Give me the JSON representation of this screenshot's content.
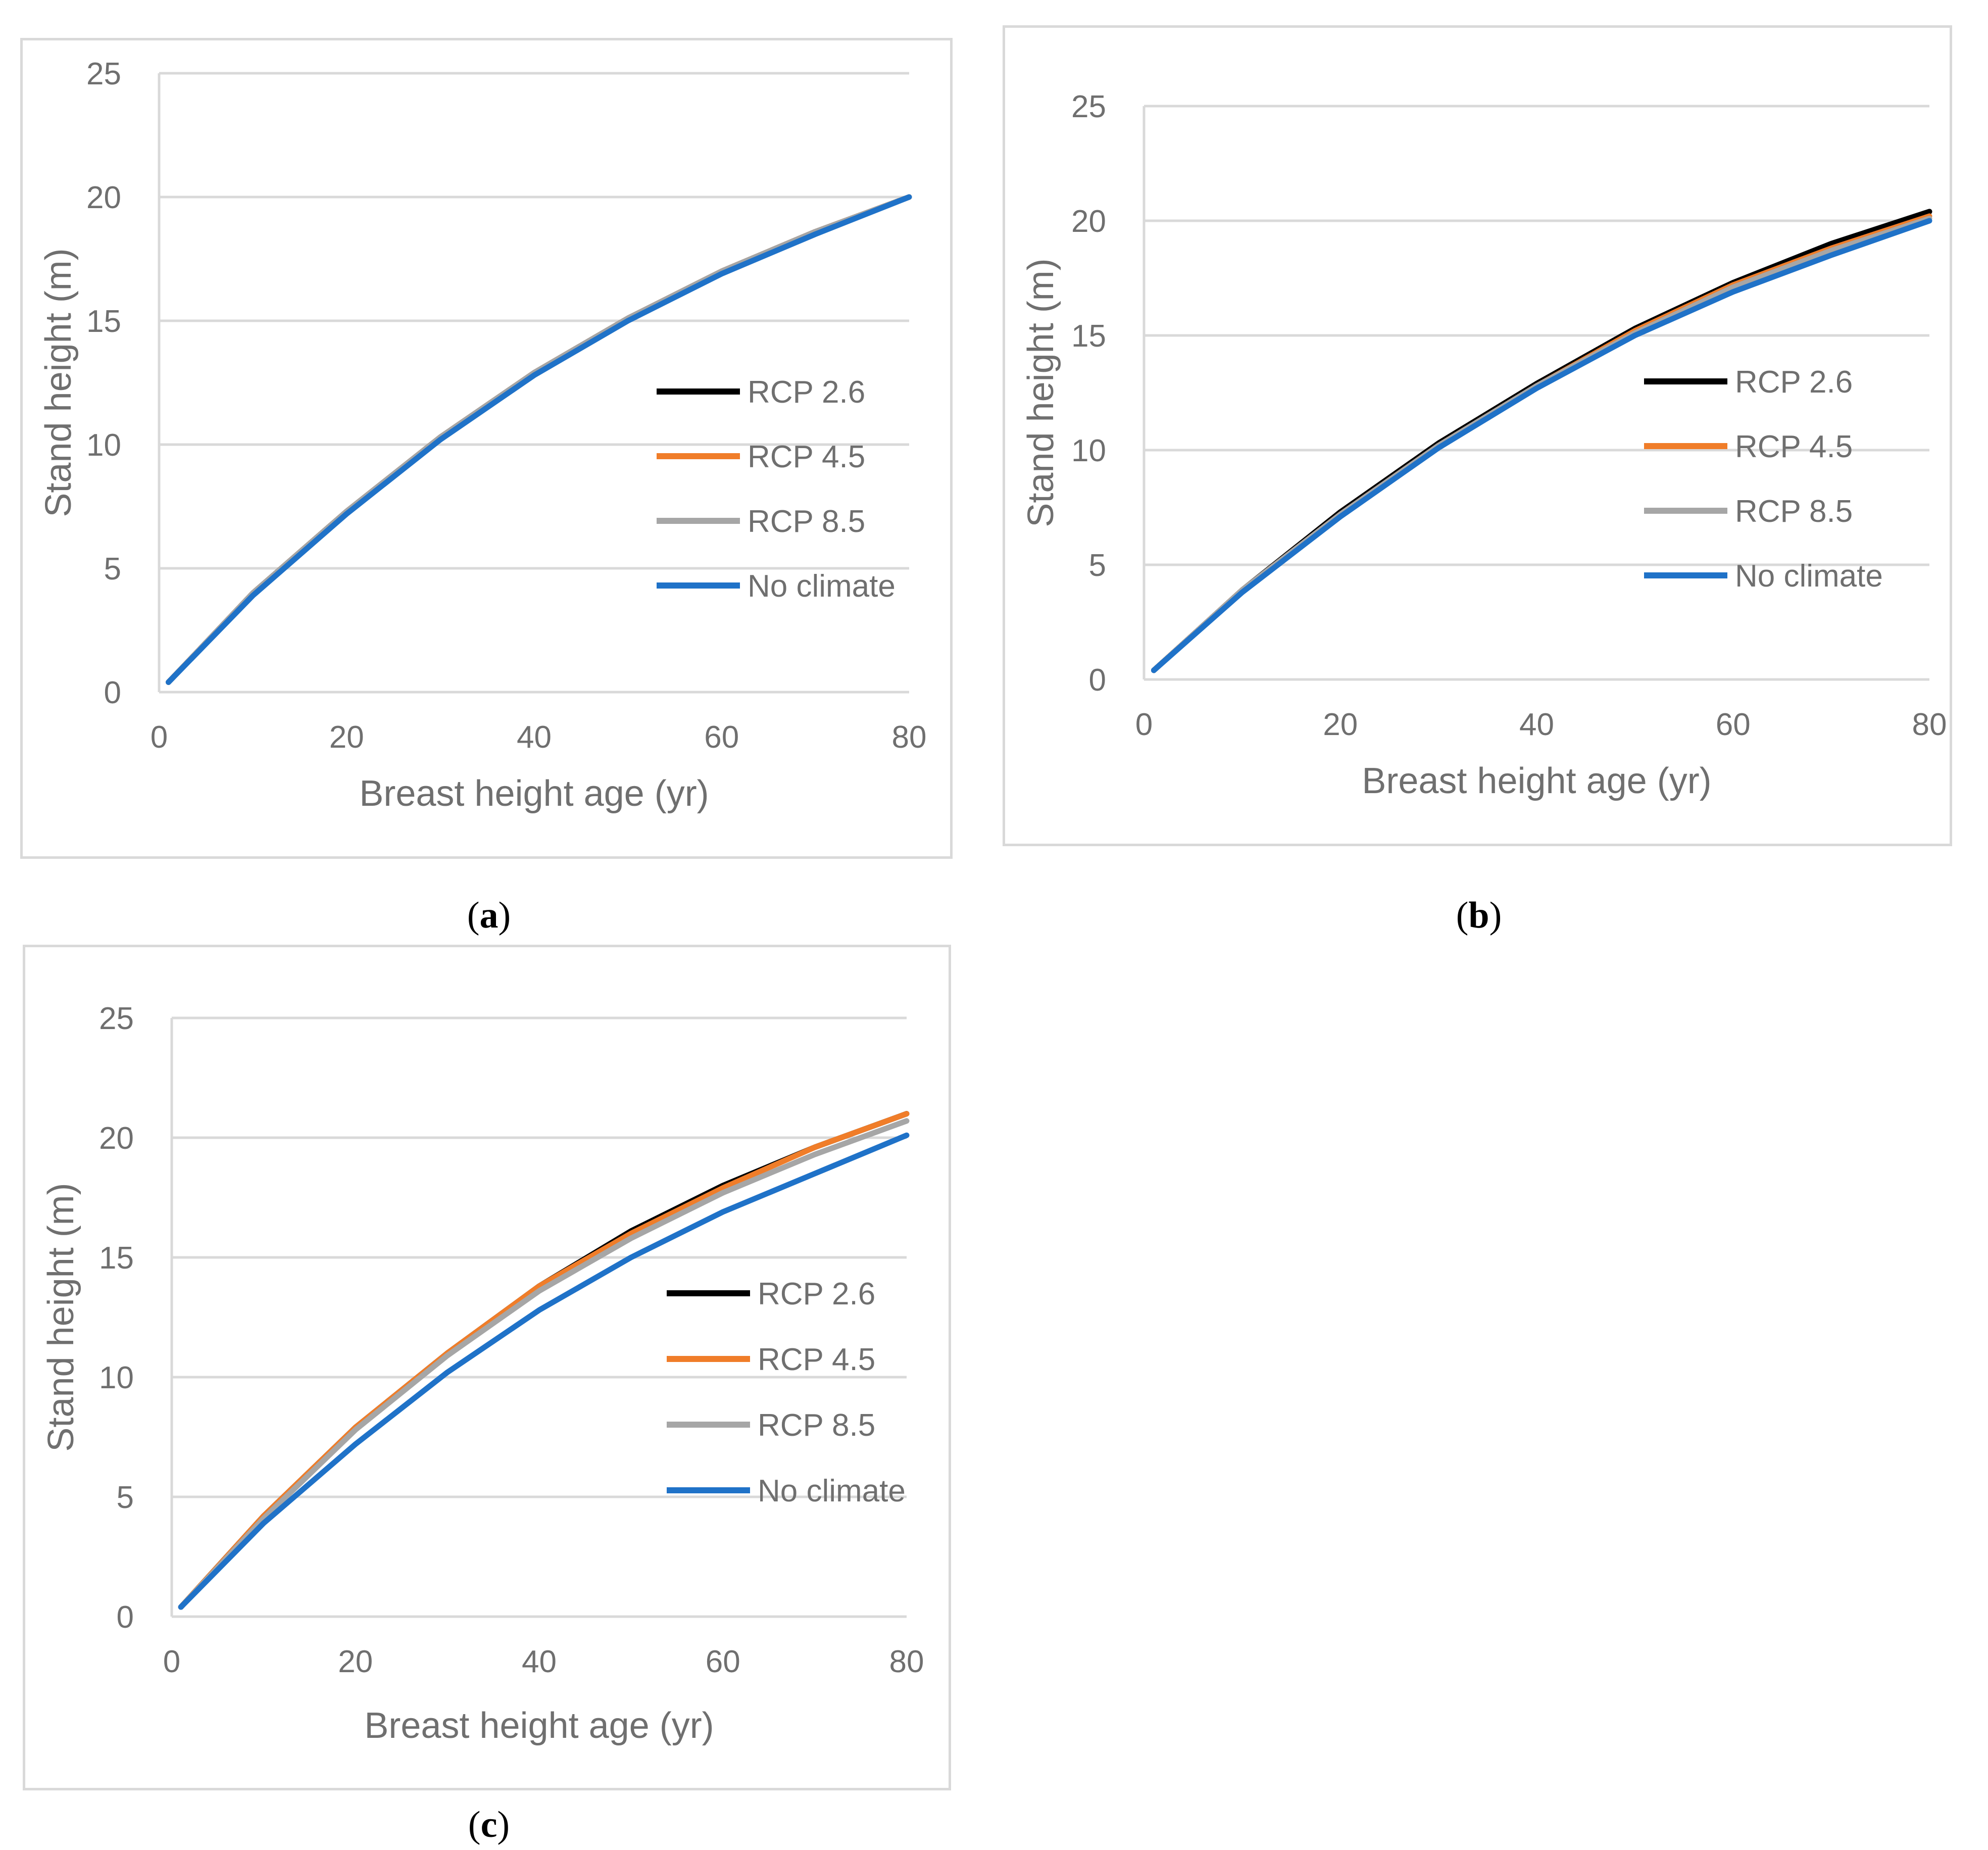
{
  "legend_colors": {
    "RCP 2.6": "#000000",
    "RCP 4.5": "#f07d29",
    "RCP 8.5": "#a6a6a6",
    "No climate": "#1f72c8"
  },
  "chart_data": [
    {
      "panel": "a",
      "caption_letter": "a",
      "type": "line",
      "title": "",
      "xlabel": "Breast height age (yr)",
      "ylabel": "Stand height (m)",
      "xlim": [
        0,
        80
      ],
      "ylim": [
        0,
        25
      ],
      "xticks": [
        "0",
        "20",
        "40",
        "60",
        "80"
      ],
      "yticks": [
        "0",
        "5",
        "10",
        "15",
        "20",
        "25"
      ],
      "grid": true,
      "legend_position": "right",
      "x": [
        1,
        10,
        20,
        30,
        40,
        50,
        60,
        70,
        80
      ],
      "series": [
        {
          "name": "RCP 2.6",
          "values": [
            0.4,
            4.0,
            7.3,
            10.3,
            12.9,
            15.1,
            17.0,
            18.6,
            20.0
          ]
        },
        {
          "name": "RCP 4.5",
          "values": [
            0.4,
            4.0,
            7.3,
            10.3,
            12.9,
            15.1,
            17.0,
            18.6,
            20.0
          ]
        },
        {
          "name": "RCP 8.5",
          "values": [
            0.4,
            4.0,
            7.3,
            10.3,
            12.9,
            15.1,
            17.0,
            18.6,
            20.0
          ]
        },
        {
          "name": "No climate",
          "values": [
            0.4,
            3.9,
            7.2,
            10.2,
            12.8,
            15.0,
            16.9,
            18.5,
            20.0
          ]
        }
      ]
    },
    {
      "panel": "b",
      "caption_letter": "b",
      "type": "line",
      "title": "",
      "xlabel": "Breast height age (yr)",
      "ylabel": "Stand height (m)",
      "xlim": [
        0,
        80
      ],
      "ylim": [
        0,
        25
      ],
      "xticks": [
        "0",
        "20",
        "40",
        "60",
        "80"
      ],
      "yticks": [
        "0",
        "5",
        "10",
        "15",
        "20",
        "25"
      ],
      "grid": true,
      "legend_position": "right",
      "x": [
        1,
        10,
        20,
        30,
        40,
        50,
        60,
        70,
        80
      ],
      "series": [
        {
          "name": "RCP 2.6",
          "values": [
            0.4,
            3.9,
            7.3,
            10.3,
            12.9,
            15.3,
            17.3,
            19.0,
            20.4
          ]
        },
        {
          "name": "RCP 4.5",
          "values": [
            0.4,
            3.9,
            7.2,
            10.2,
            12.8,
            15.2,
            17.2,
            18.8,
            20.2
          ]
        },
        {
          "name": "RCP 8.5",
          "values": [
            0.4,
            3.9,
            7.2,
            10.2,
            12.8,
            15.1,
            17.1,
            18.7,
            20.1
          ]
        },
        {
          "name": "No climate",
          "values": [
            0.4,
            3.8,
            7.1,
            10.1,
            12.7,
            15.0,
            16.9,
            18.5,
            20.0
          ]
        }
      ]
    },
    {
      "panel": "c",
      "caption_letter": "c",
      "type": "line",
      "title": "",
      "xlabel": "Breast height age (yr)",
      "ylabel": "Stand height (m)",
      "xlim": [
        0,
        80
      ],
      "ylim": [
        0,
        25
      ],
      "xticks": [
        "0",
        "20",
        "40",
        "60",
        "80"
      ],
      "yticks": [
        "0",
        "5",
        "10",
        "15",
        "20",
        "25"
      ],
      "grid": true,
      "legend_position": "right",
      "x": [
        1,
        10,
        20,
        30,
        40,
        50,
        60,
        70,
        80
      ],
      "series": [
        {
          "name": "RCP 2.6",
          "values": [
            0.4,
            4.2,
            7.9,
            11.0,
            13.8,
            16.1,
            18.0,
            19.6,
            21.0
          ]
        },
        {
          "name": "RCP 4.5",
          "values": [
            0.4,
            4.2,
            7.9,
            11.0,
            13.8,
            16.0,
            17.9,
            19.6,
            21.0
          ]
        },
        {
          "name": "RCP 8.5",
          "values": [
            0.4,
            4.1,
            7.8,
            10.9,
            13.6,
            15.8,
            17.7,
            19.3,
            20.7
          ]
        },
        {
          "name": "No climate",
          "values": [
            0.4,
            3.9,
            7.2,
            10.2,
            12.8,
            15.0,
            16.9,
            18.5,
            20.1
          ]
        }
      ]
    }
  ]
}
